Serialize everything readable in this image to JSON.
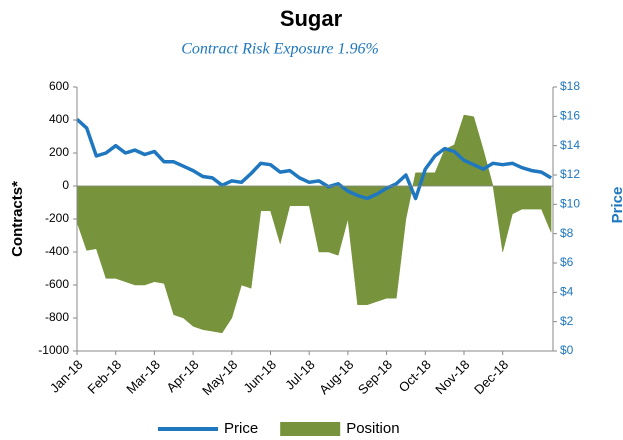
{
  "chart_data": {
    "type": "area-line",
    "title": "Sugar",
    "subtitle": "Contract Risk Exposure 1.96%",
    "ylabel": "Contracts*",
    "y2label": "Price",
    "xlim": [
      0,
      12.3
    ],
    "xticks": [
      {
        "value": 0,
        "label": "Jan-18"
      },
      {
        "value": 1,
        "label": "Feb-18"
      },
      {
        "value": 2,
        "label": "Mar-18"
      },
      {
        "value": 3,
        "label": "Apr-18"
      },
      {
        "value": 4,
        "label": "May-18"
      },
      {
        "value": 5,
        "label": "Jun-18"
      },
      {
        "value": 6,
        "label": "Jul-18"
      },
      {
        "value": 7,
        "label": "Aug-18"
      },
      {
        "value": 8,
        "label": "Sep-18"
      },
      {
        "value": 9,
        "label": "Oct-18"
      },
      {
        "value": 10,
        "label": "Nov-18"
      },
      {
        "value": 11,
        "label": "Dec-18"
      }
    ],
    "ylim": [
      -1000,
      600
    ],
    "yticks": [
      600,
      400,
      200,
      0,
      -200,
      -400,
      -600,
      -800,
      -1000
    ],
    "y2lim": [
      0,
      18
    ],
    "y2ticks": [
      {
        "value": 18,
        "label": "$18"
      },
      {
        "value": 16,
        "label": "$16"
      },
      {
        "value": 14,
        "label": "$14"
      },
      {
        "value": 12,
        "label": "$12"
      },
      {
        "value": 10,
        "label": "$10"
      },
      {
        "value": 8,
        "label": "$8"
      },
      {
        "value": 6,
        "label": "$6"
      },
      {
        "value": 4,
        "label": "$4"
      },
      {
        "value": 2,
        "label": "$2"
      },
      {
        "value": 0,
        "label": "$0"
      }
    ],
    "x": [
      0,
      0.25,
      0.5,
      0.75,
      1,
      1.25,
      1.5,
      1.75,
      2,
      2.25,
      2.5,
      2.75,
      3,
      3.25,
      3.5,
      3.75,
      4,
      4.25,
      4.5,
      4.75,
      5,
      5.25,
      5.5,
      5.75,
      6,
      6.25,
      6.5,
      6.75,
      7,
      7.25,
      7.5,
      7.75,
      8,
      8.25,
      8.5,
      8.75,
      9,
      9.25,
      9.5,
      9.75,
      10,
      10.25,
      10.5,
      10.75,
      11,
      11.25,
      11.5,
      11.75,
      12,
      12.25
    ],
    "series": [
      {
        "name": "Price",
        "color": "#1f77c0",
        "axis": "y2",
        "kind": "line",
        "values": [
          15.8,
          15.2,
          13.3,
          13.5,
          14.0,
          13.5,
          13.7,
          13.4,
          13.6,
          12.9,
          12.9,
          12.6,
          12.3,
          11.9,
          11.8,
          11.3,
          11.6,
          11.5,
          12.1,
          12.8,
          12.7,
          12.2,
          12.3,
          11.8,
          11.5,
          11.6,
          11.2,
          11.4,
          10.9,
          10.6,
          10.4,
          10.7,
          11.1,
          11.4,
          12.0,
          10.4,
          12.4,
          13.3,
          13.8,
          13.6,
          13.0,
          12.7,
          12.4,
          12.8,
          12.7,
          12.8,
          12.5,
          12.3,
          12.2,
          11.8
        ]
      },
      {
        "name": "Position",
        "color": "#77933c",
        "kind": "area",
        "values": [
          -220,
          -390,
          -380,
          -560,
          -560,
          -580,
          -600,
          -600,
          -580,
          -590,
          -780,
          -800,
          -850,
          -870,
          -880,
          -890,
          -800,
          -600,
          -620,
          -150,
          -150,
          -350,
          -120,
          -120,
          -120,
          -400,
          -400,
          -420,
          -200,
          -720,
          -720,
          -700,
          -680,
          -680,
          -200,
          80,
          80,
          80,
          220,
          250,
          430,
          420,
          220,
          0,
          -400,
          -170,
          -140,
          -140,
          -140,
          -280
        ]
      }
    ]
  }
}
